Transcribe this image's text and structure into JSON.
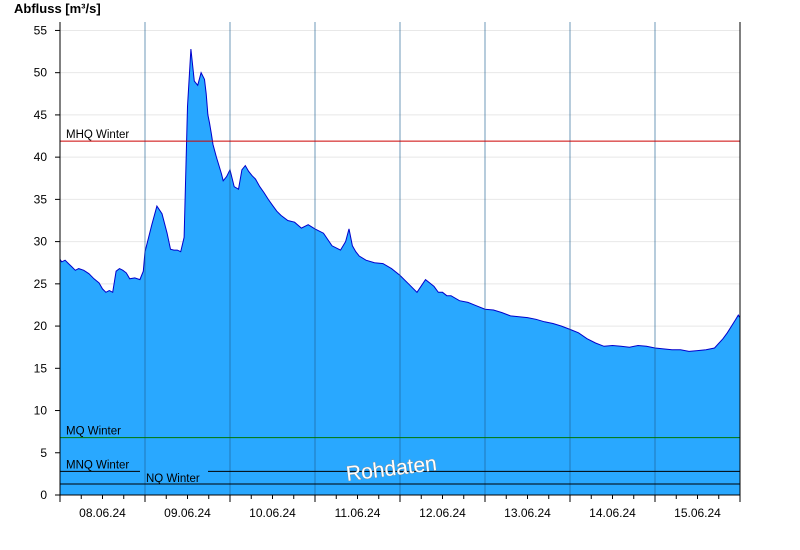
{
  "chart_data": {
    "type": "area",
    "ylabel": "Abfluss [m³/s]",
    "ylim": [
      0,
      56
    ],
    "yticks": [
      0,
      5,
      10,
      15,
      20,
      25,
      30,
      35,
      40,
      45,
      50,
      55
    ],
    "x_days": [
      "08.06.24",
      "09.06.24",
      "10.06.24",
      "11.06.24",
      "12.06.24",
      "13.06.24",
      "14.06.24",
      "15.06.24"
    ],
    "xlim_days": [
      0,
      8.0
    ],
    "grid": "horizontal",
    "fill_color": "#29A8FF",
    "line_color": "#0000CC",
    "reference_lines": [
      {
        "label": "MHQ Winter",
        "value": 41.9,
        "color": "#CC0000"
      },
      {
        "label": "MQ Winter",
        "value": 6.8,
        "color": "#007700"
      },
      {
        "label": "MNQ Winter",
        "value": 2.8,
        "color": "#000000"
      },
      {
        "label": "NQ Winter",
        "value": 1.3,
        "color": "#000000"
      }
    ],
    "annotation": "Rohdaten",
    "series": [
      {
        "x": [
          0.0,
          0.02,
          0.06,
          0.1,
          0.14,
          0.18,
          0.22,
          0.28,
          0.34,
          0.4,
          0.46,
          0.5,
          0.54,
          0.58,
          0.62,
          0.66,
          0.7,
          0.74,
          0.78,
          0.82,
          0.88,
          0.94,
          0.98,
          1.0,
          1.08,
          1.14,
          1.2,
          1.26,
          1.3,
          1.34,
          1.38,
          1.42,
          1.46,
          1.5,
          1.54,
          1.58,
          1.62,
          1.66,
          1.7,
          1.72,
          1.74,
          1.76,
          1.78,
          1.8,
          1.84,
          1.87,
          1.9,
          1.92,
          1.96,
          2.0,
          2.05,
          2.1,
          2.14,
          2.18,
          2.22,
          2.26,
          2.3,
          2.35,
          2.4,
          2.45,
          2.5,
          2.55,
          2.6,
          2.68,
          2.76,
          2.84,
          2.92,
          3.0,
          3.1,
          3.2,
          3.3,
          3.36,
          3.4,
          3.44,
          3.48,
          3.52,
          3.6,
          3.7,
          3.8,
          3.9,
          4.0,
          4.1,
          4.2,
          4.3,
          4.4,
          4.45,
          4.5,
          4.55,
          4.6,
          4.7,
          4.8,
          4.9,
          5.0,
          5.1,
          5.2,
          5.3,
          5.4,
          5.5,
          5.6,
          5.7,
          5.8,
          5.9,
          6.0,
          6.1,
          6.2,
          6.3,
          6.4,
          6.5,
          6.6,
          6.7,
          6.8,
          6.9,
          7.0,
          7.1,
          7.2,
          7.3,
          7.4,
          7.5,
          7.6,
          7.7,
          7.8,
          7.85,
          7.9,
          7.95,
          7.98,
          8.0
        ],
        "values": [
          27.9,
          27.6,
          27.8,
          27.4,
          27.0,
          26.6,
          26.8,
          26.6,
          26.2,
          25.6,
          25.1,
          24.4,
          24.0,
          24.2,
          24.0,
          26.5,
          26.8,
          26.6,
          26.3,
          25.6,
          25.7,
          25.5,
          26.5,
          28.8,
          32.0,
          34.2,
          33.3,
          31.0,
          29.1,
          29.0,
          29.0,
          28.8,
          30.5,
          46.0,
          52.8,
          49.0,
          48.5,
          50.0,
          49.2,
          47.5,
          45.0,
          44.0,
          42.8,
          41.5,
          40.0,
          39.0,
          38.0,
          37.2,
          37.7,
          38.5,
          36.5,
          36.2,
          38.5,
          39.0,
          38.3,
          37.8,
          37.4,
          36.5,
          35.8,
          35.0,
          34.3,
          33.6,
          33.1,
          32.5,
          32.3,
          31.6,
          32.0,
          31.5,
          31.0,
          29.5,
          29.0,
          30.0,
          31.5,
          29.5,
          28.8,
          28.3,
          27.8,
          27.5,
          27.4,
          26.8,
          26.0,
          25.0,
          24.0,
          25.5,
          24.7,
          24.0,
          24.0,
          23.6,
          23.6,
          23.0,
          22.8,
          22.4,
          22.0,
          21.9,
          21.6,
          21.2,
          21.1,
          21.0,
          20.8,
          20.5,
          20.3,
          20.0,
          19.6,
          19.2,
          18.5,
          18.0,
          17.6,
          17.7,
          17.6,
          17.5,
          17.7,
          17.6,
          17.4,
          17.3,
          17.2,
          17.2,
          17.0,
          17.1,
          17.2,
          17.4,
          18.5,
          19.2,
          20.0,
          20.8,
          21.3,
          21.0
        ]
      }
    ]
  }
}
